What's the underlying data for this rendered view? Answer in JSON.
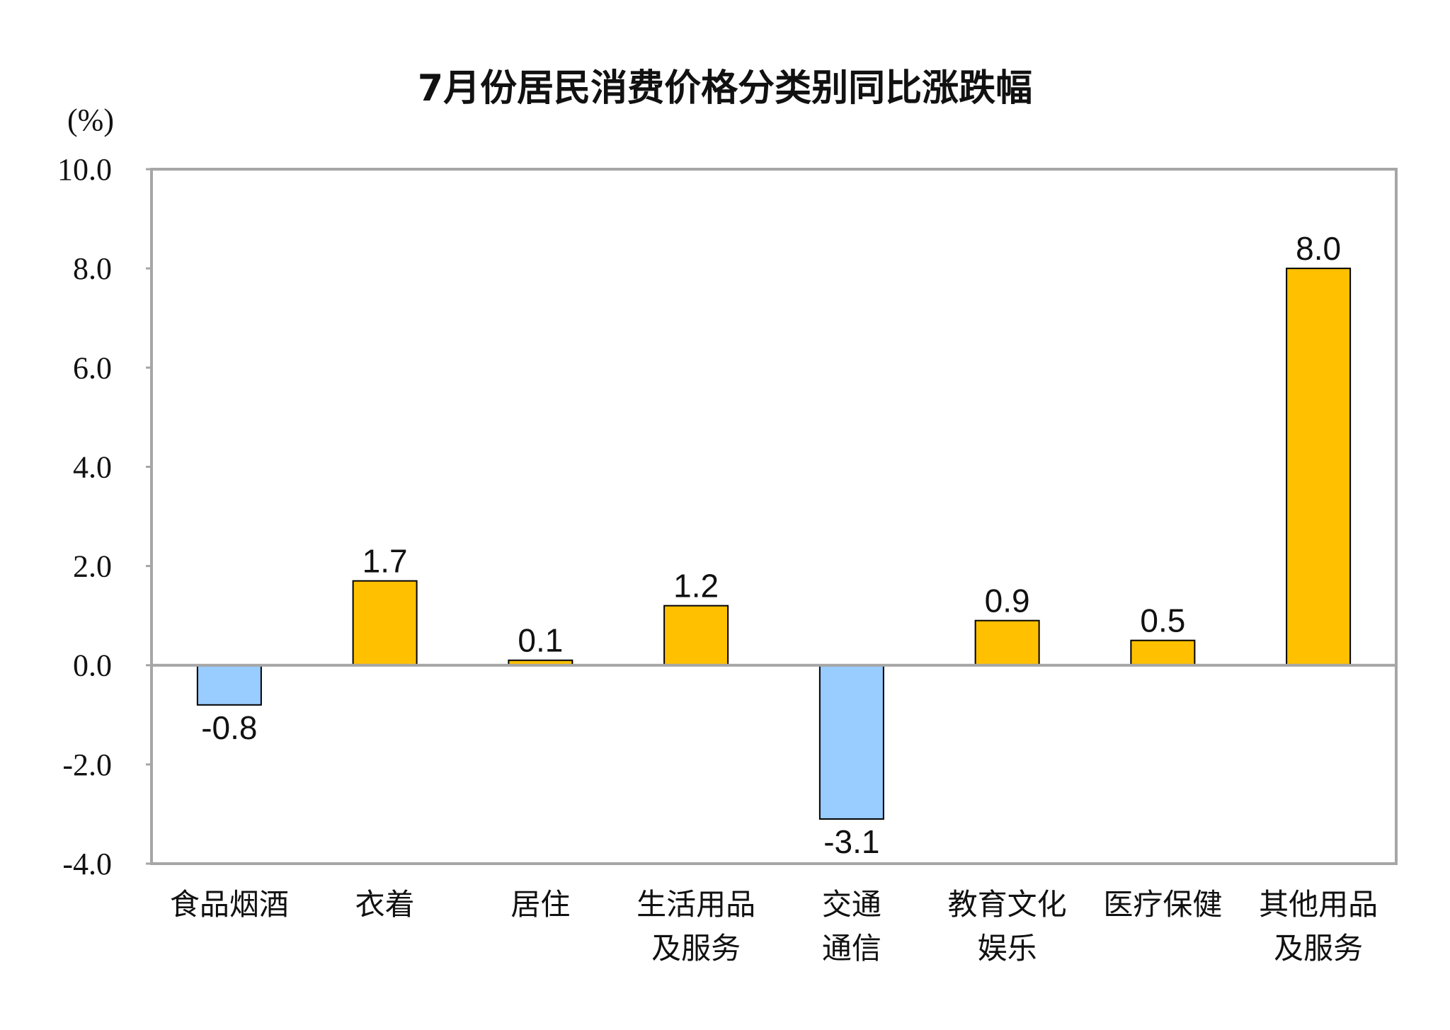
{
  "chart_data": {
    "type": "bar",
    "title": "7月份居民消费价格分类别同比涨跌幅",
    "ylabel": "(%)",
    "xlabel": "",
    "ylim": [
      -4.0,
      10.0
    ],
    "yticks": [
      "10.0",
      "8.0",
      "6.0",
      "4.0",
      "2.0",
      "0.0",
      "-2.0",
      "-4.0"
    ],
    "ytick_values": [
      10,
      8,
      6,
      4,
      2,
      0,
      -2,
      -4
    ],
    "grid": false,
    "categories": [
      [
        "食品烟酒"
      ],
      [
        "衣着"
      ],
      [
        "居住"
      ],
      [
        "生活用品",
        "及服务"
      ],
      [
        "交通",
        "通信"
      ],
      [
        "教育文化",
        "娱乐"
      ],
      [
        "医疗保健"
      ],
      [
        "其他用品",
        "及服务"
      ]
    ],
    "values": [
      -0.8,
      1.7,
      0.1,
      1.2,
      -3.1,
      0.9,
      0.5,
      8.0
    ],
    "data_labels": [
      "-0.8",
      "1.7",
      "0.1",
      "1.2",
      "-3.1",
      "0.9",
      "0.5",
      "8.0"
    ],
    "colors": {
      "positive": "#FFC000",
      "negative": "#99CCFF",
      "outline": "#000000",
      "frame": "#A6A6A6"
    }
  }
}
